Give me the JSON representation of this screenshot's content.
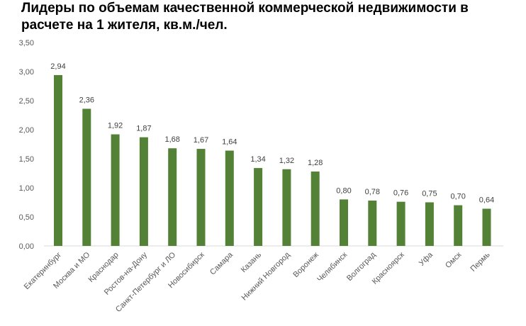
{
  "chart_data": {
    "type": "bar",
    "title": "Лидеры по объемам качественной коммерческой недвижимости в расчете на 1 жителя, кв.м./чел.",
    "categories": [
      "Екатеринбург",
      "Москва и МО",
      "Краснодар",
      "Ростов-на-Дону",
      "Санкт-Петербург и ЛО",
      "Новосибирск",
      "Самара",
      "Казань",
      "Нижний Новгород",
      "Воронеж",
      "Челябинск",
      "Волгоград",
      "Красноярск",
      "Уфа",
      "Омск",
      "Пермь"
    ],
    "values": [
      2.94,
      2.36,
      1.92,
      1.87,
      1.68,
      1.67,
      1.64,
      1.34,
      1.32,
      1.28,
      0.8,
      0.78,
      0.76,
      0.75,
      0.7,
      0.64
    ],
    "value_labels": [
      "2,94",
      "2,36",
      "1,92",
      "1,87",
      "1,68",
      "1,67",
      "1,64",
      "1,34",
      "1,32",
      "1,28",
      "0,80",
      "0,78",
      "0,76",
      "0,75",
      "0,70",
      "0,64"
    ],
    "y_ticks": [
      "0,00",
      "0,50",
      "1,00",
      "1,50",
      "2,00",
      "2,50",
      "3,00",
      "3,50"
    ],
    "ylim": [
      0,
      3.5
    ],
    "xlabel": "",
    "ylabel": "",
    "grid": false,
    "bar_color": "#538135"
  }
}
